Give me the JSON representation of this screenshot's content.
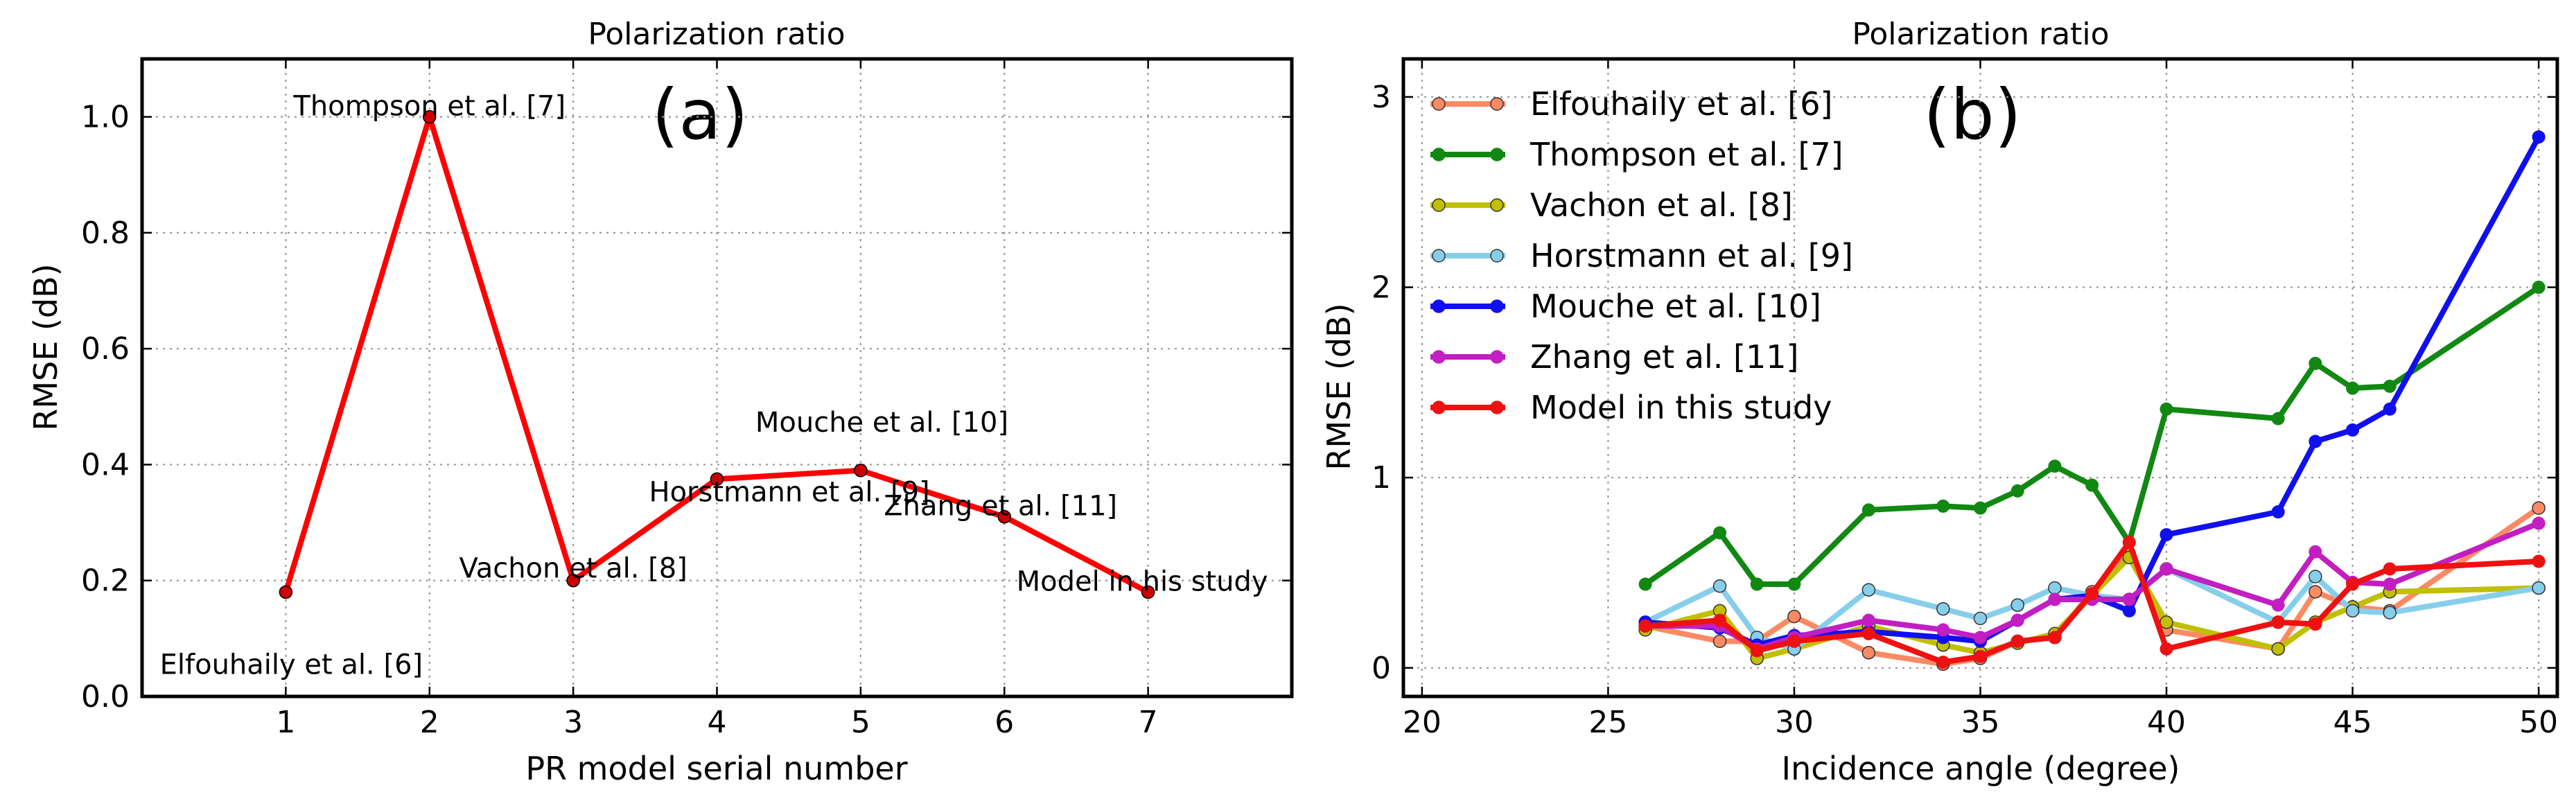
{
  "chart_data": [
    {
      "type": "line",
      "panel_label": "(a)",
      "title": "Polarization ratio",
      "xlabel": "PR model serial number",
      "ylabel": "RMSE (dB)",
      "xlim": [
        0,
        8
      ],
      "ylim": [
        0,
        1.1
      ],
      "xticks": [
        1,
        2,
        3,
        4,
        5,
        6,
        7
      ],
      "xtick_labels": [
        "1",
        "2",
        "3",
        "4",
        "5",
        "6",
        "7"
      ],
      "yticks": [
        0.0,
        0.2,
        0.4,
        0.6,
        0.8,
        1.0
      ],
      "ytick_labels": [
        "0.0",
        "0.2",
        "0.4",
        "0.6",
        "0.8",
        "1.0"
      ],
      "color": "#ff0000",
      "x": [
        1,
        2,
        3,
        4,
        5,
        6,
        7
      ],
      "y": [
        0.18,
        1.0,
        0.2,
        0.375,
        0.39,
        0.31,
        0.18
      ],
      "annotations": [
        "Elfouhaily et al. [6]",
        "Thompson et al. [7]",
        "Vachon et al. [8]",
        "Horstmann et al. [9]",
        "Mouche et al. [10]",
        "Zhang et al. [11]",
        "Model in his study"
      ]
    },
    {
      "type": "line",
      "panel_label": "(b)",
      "title": "Polarization ratio",
      "xlabel": "Incidence angle (degree)",
      "ylabel": "RMSE (dB)",
      "xlim": [
        19.5,
        50.5
      ],
      "ylim": [
        -0.15,
        3.2
      ],
      "xticks": [
        20,
        25,
        30,
        35,
        40,
        45,
        50
      ],
      "xtick_labels": [
        "20",
        "25",
        "30",
        "35",
        "40",
        "45",
        "50"
      ],
      "yticks": [
        0,
        1,
        2,
        3
      ],
      "ytick_labels": [
        "0",
        "1",
        "2",
        "3"
      ],
      "legend_position": "top-left",
      "series": [
        {
          "name": "Elfouhaily et al. [6]",
          "color": "#fa8a64",
          "light": true,
          "x": [
            26,
            28,
            29,
            30,
            32,
            34,
            35,
            36,
            37,
            38,
            39,
            40,
            43,
            44,
            45,
            46,
            50
          ],
          "y": [
            0.22,
            0.14,
            0.14,
            0.27,
            0.08,
            0.02,
            0.05,
            0.14,
            0.16,
            0.4,
            0.6,
            0.2,
            0.1,
            0.4,
            0.32,
            0.3,
            0.84
          ]
        },
        {
          "name": "Thompson et al. [7]",
          "color": "#118811",
          "light": false,
          "x": [
            26,
            28,
            29,
            30,
            32,
            34,
            35,
            36,
            37,
            38,
            39,
            40,
            43,
            44,
            45,
            46,
            50
          ],
          "y": [
            0.44,
            0.71,
            0.44,
            0.44,
            0.83,
            0.85,
            0.84,
            0.93,
            1.06,
            0.96,
            0.66,
            1.36,
            1.31,
            1.6,
            1.47,
            1.48,
            2.0
          ]
        },
        {
          "name": "Vachon et al. [8]",
          "color": "#c0bf00",
          "light": true,
          "x": [
            26,
            28,
            29,
            30,
            32,
            34,
            35,
            36,
            37,
            38,
            39,
            40,
            43,
            44,
            45,
            46,
            50
          ],
          "y": [
            0.2,
            0.3,
            0.05,
            0.1,
            0.22,
            0.12,
            0.08,
            0.13,
            0.18,
            0.38,
            0.58,
            0.24,
            0.1,
            0.24,
            0.32,
            0.4,
            0.42
          ]
        },
        {
          "name": "Horstmann et al. [9]",
          "color": "#87ceeb",
          "light": true,
          "x": [
            26,
            28,
            29,
            30,
            32,
            34,
            35,
            36,
            37,
            38,
            39,
            40,
            43,
            44,
            45,
            46,
            50
          ],
          "y": [
            0.24,
            0.43,
            0.16,
            0.1,
            0.41,
            0.31,
            0.26,
            0.33,
            0.42,
            0.38,
            0.36,
            0.52,
            0.24,
            0.48,
            0.3,
            0.29,
            0.42
          ]
        },
        {
          "name": "Mouche et al. [10]",
          "color": "#1010ee",
          "light": false,
          "x": [
            26,
            28,
            29,
            30,
            32,
            34,
            35,
            36,
            37,
            38,
            39,
            40,
            43,
            44,
            45,
            46,
            50
          ],
          "y": [
            0.24,
            0.21,
            0.12,
            0.17,
            0.19,
            0.16,
            0.14,
            0.25,
            0.36,
            0.38,
            0.3,
            0.7,
            0.82,
            1.19,
            1.25,
            1.36,
            2.79
          ]
        },
        {
          "name": "Zhang et al. [11]",
          "color": "#c21ec2",
          "light": false,
          "x": [
            26,
            28,
            29,
            30,
            32,
            34,
            35,
            36,
            37,
            38,
            39,
            40,
            43,
            44,
            45,
            46,
            50
          ],
          "y": [
            0.22,
            0.22,
            0.1,
            0.16,
            0.25,
            0.2,
            0.16,
            0.25,
            0.36,
            0.36,
            0.36,
            0.52,
            0.33,
            0.61,
            0.45,
            0.44,
            0.76
          ]
        },
        {
          "name": "Model in this study",
          "color": "#ee1111",
          "light": false,
          "x": [
            26,
            28,
            29,
            30,
            32,
            34,
            35,
            36,
            37,
            38,
            39,
            40,
            43,
            44,
            45,
            46,
            50
          ],
          "y": [
            0.22,
            0.25,
            0.09,
            0.14,
            0.18,
            0.03,
            0.06,
            0.14,
            0.16,
            0.39,
            0.66,
            0.1,
            0.24,
            0.23,
            0.44,
            0.52,
            0.56
          ]
        }
      ]
    }
  ]
}
